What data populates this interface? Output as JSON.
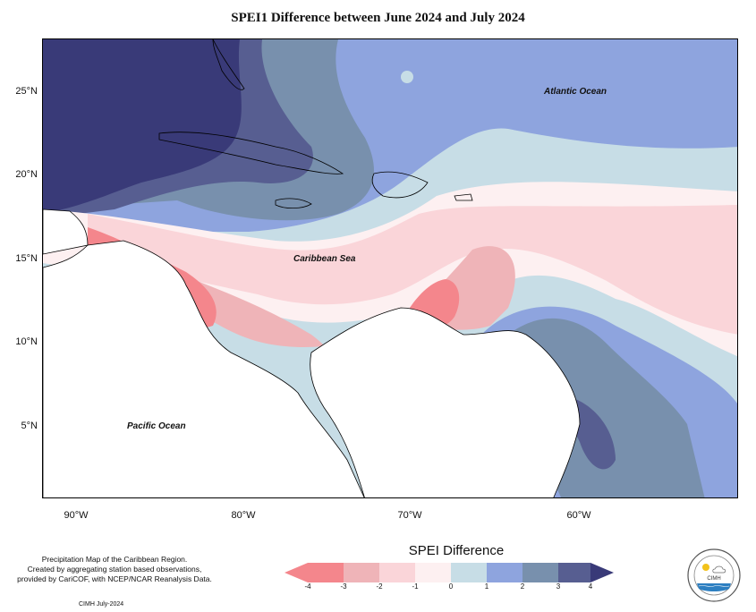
{
  "title": "SPEI1 Difference between June 2024 and July 2024",
  "axes": {
    "lat_ticks": [
      "25°N",
      "20°N",
      "15°N",
      "10°N",
      "5°N"
    ],
    "lon_ticks": [
      "90°W",
      "80°W",
      "70°W",
      "60°W"
    ]
  },
  "map_labels": {
    "atlantic": "Atlantic Ocean",
    "caribbean": "Caribbean Sea",
    "pacific": "Pacific Ocean"
  },
  "footnote": {
    "line1": "Precipitation Map of the Caribbean Region.",
    "line2": "Created by aggregating station based observations,",
    "line3": "provided by CariCOF, with NCEP/NCAR Reanalysis Data."
  },
  "credit": "CIMH July-2024",
  "legend": {
    "title": "SPEI Difference",
    "ticks": [
      "-4",
      "-3",
      "-2",
      "-1",
      "0",
      "1",
      "2",
      "3",
      "4"
    ],
    "colors": {
      "lt_-3": "#f4868c",
      "-3_-2": "#efb4b8",
      "-2_-1": "#fad5d9",
      "-1_0": "#fdf0f1",
      "0_1": "#c7dde6",
      "1_2": "#8ea4de",
      "2_3": "#7890ad",
      "3_4": "#575e91",
      "gt_4": "#393a78"
    }
  },
  "logo": {
    "name": "CIMH"
  }
}
